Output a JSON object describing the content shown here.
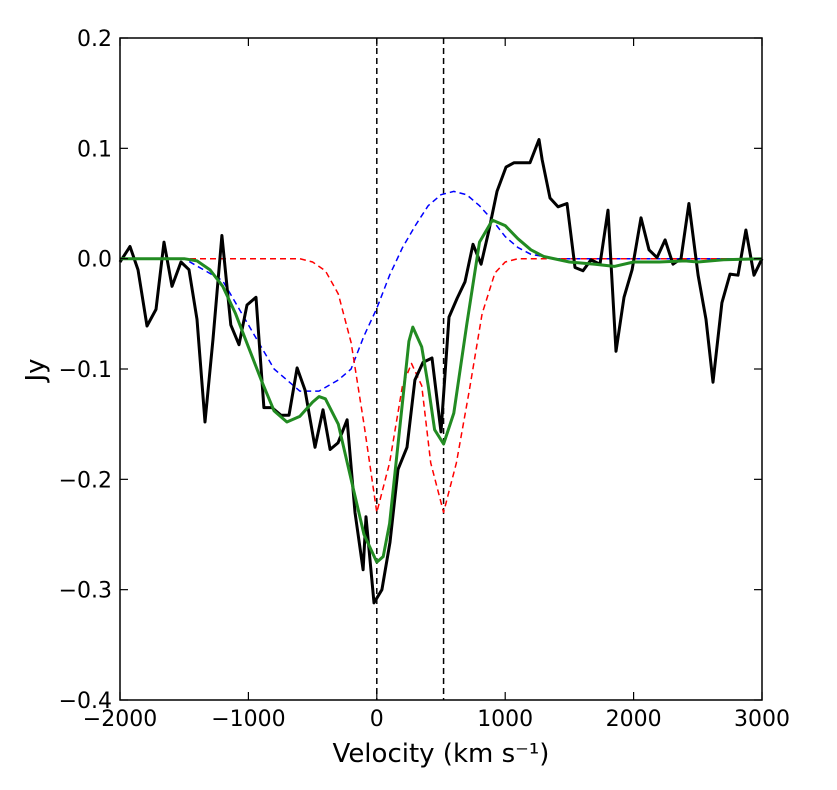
{
  "chart_data": {
    "type": "line",
    "xlabel": "Velocity (km s⁻¹)",
    "ylabel": "Jy",
    "xlim": [
      -2000,
      3000
    ],
    "ylim": [
      -0.4,
      0.2
    ],
    "xticks": [
      {
        "value": -2000,
        "label": "−2000"
      },
      {
        "value": -1000,
        "label": "−1000"
      },
      0,
      1000,
      2000,
      3000
    ],
    "yticks": [
      {
        "value": -0.4,
        "label": "−0.4"
      },
      {
        "value": -0.3,
        "label": "−0.3"
      },
      {
        "value": -0.2,
        "label": "−0.2"
      },
      {
        "value": -0.1,
        "label": "−0.1"
      },
      {
        "value": 0,
        "label": "0.0"
      },
      0.1,
      0.2
    ],
    "vlines": [
      0,
      520
    ],
    "vline_color": "#000000",
    "series": [
      {
        "color": "#0000ff",
        "dashed": true,
        "width": 1.5,
        "x": [
          -2000,
          -1500,
          -1200,
          -1000,
          -800,
          -600,
          -450,
          -300,
          -200,
          -100,
          0,
          100,
          200,
          300,
          400,
          500,
          600,
          700,
          800,
          900,
          1000,
          1100,
          1200,
          1400,
          3000
        ],
        "values": [
          0,
          0,
          -0.02,
          -0.06,
          -0.1,
          -0.12,
          -0.12,
          -0.11,
          -0.1,
          -0.07,
          -0.045,
          -0.015,
          0.01,
          0.03,
          0.048,
          0.058,
          0.061,
          0.058,
          0.048,
          0.035,
          0.02,
          0.01,
          0.004,
          0,
          0
        ]
      },
      {
        "color": "#ff0000",
        "dashed": true,
        "width": 1.5,
        "x": [
          -2000,
          -1500,
          -600,
          -500,
          -400,
          -300,
          -200,
          -100,
          0,
          100,
          200,
          270,
          350,
          420,
          520,
          620,
          720,
          820,
          920,
          1000,
          1100,
          3000
        ],
        "values": [
          0,
          0,
          0,
          -0.003,
          -0.011,
          -0.032,
          -0.076,
          -0.15,
          -0.23,
          -0.185,
          -0.115,
          -0.095,
          -0.115,
          -0.185,
          -0.23,
          -0.185,
          -0.12,
          -0.05,
          -0.013,
          -0.003,
          0,
          0
        ]
      },
      {
        "color": "#000000",
        "dashed": false,
        "width": 3,
        "x": [
          -2000,
          -1922,
          -1860,
          -1790,
          -1720,
          -1657,
          -1595,
          -1525,
          -1463,
          -1400,
          -1338,
          -1276,
          -1206,
          -1137,
          -1073,
          -1011,
          -941,
          -879,
          -816,
          -746,
          -684,
          -621,
          -559,
          -481,
          -419,
          -364,
          -302,
          -231,
          -170,
          -107,
          -84,
          -22,
          40,
          103,
          165,
          235,
          297,
          360,
          430,
          500,
          562,
          625,
          687,
          749,
          812,
          874,
          936,
          1006,
          1069,
          1131,
          1193,
          1263,
          1287,
          1349,
          1411,
          1481,
          1544,
          1606,
          1668,
          1738,
          1801,
          1863,
          1925,
          1988,
          2058,
          2120,
          2182,
          2245,
          2307,
          2369,
          2431,
          2502,
          2564,
          2618,
          2688,
          2751,
          2813,
          2875,
          2938,
          3000
        ],
        "values": [
          -0.003,
          0.011,
          -0.01,
          -0.061,
          -0.046,
          0.015,
          -0.025,
          -0.003,
          -0.01,
          -0.055,
          -0.148,
          -0.073,
          0.021,
          -0.06,
          -0.078,
          -0.042,
          -0.035,
          -0.135,
          -0.135,
          -0.142,
          -0.142,
          -0.099,
          -0.119,
          -0.171,
          -0.137,
          -0.173,
          -0.167,
          -0.146,
          -0.23,
          -0.282,
          -0.234,
          -0.312,
          -0.3,
          -0.257,
          -0.191,
          -0.171,
          -0.11,
          -0.094,
          -0.09,
          -0.157,
          -0.053,
          -0.036,
          -0.021,
          0.013,
          -0.005,
          0.026,
          0.061,
          0.083,
          0.087,
          0.087,
          0.087,
          0.108,
          0.09,
          0.055,
          0.047,
          0.05,
          -0.008,
          -0.011,
          -0.001,
          -0.005,
          0.044,
          -0.084,
          -0.035,
          -0.01,
          0.037,
          0.008,
          0.001,
          0.017,
          -0.005,
          0,
          0.05,
          -0.015,
          -0.055,
          -0.112,
          -0.04,
          -0.014,
          -0.015,
          0.026,
          -0.015,
          0
        ]
      },
      {
        "color": "#228b22",
        "dashed": false,
        "width": 3,
        "x": [
          -2000,
          -1500,
          -1400,
          -1300,
          -1200,
          -1100,
          -1000,
          -900,
          -800,
          -700,
          -600,
          -500,
          -450,
          -400,
          -300,
          -200,
          -100,
          0,
          50,
          100,
          200,
          250,
          280,
          350,
          400,
          450,
          520,
          600,
          700,
          800,
          900,
          1000,
          1100,
          1200,
          1300,
          1500,
          1700,
          1850,
          2000,
          2200,
          2400,
          2500,
          2700,
          3000
        ],
        "values": [
          0,
          0,
          -0.002,
          -0.01,
          -0.025,
          -0.05,
          -0.08,
          -0.11,
          -0.138,
          -0.148,
          -0.143,
          -0.13,
          -0.125,
          -0.127,
          -0.15,
          -0.2,
          -0.25,
          -0.275,
          -0.27,
          -0.24,
          -0.13,
          -0.075,
          -0.062,
          -0.08,
          -0.115,
          -0.155,
          -0.168,
          -0.14,
          -0.06,
          0.015,
          0.035,
          0.03,
          0.018,
          0.008,
          0.002,
          -0.003,
          -0.005,
          -0.007,
          -0.003,
          -0.003,
          -0.002,
          -0.003,
          -0.001,
          0
        ]
      }
    ]
  }
}
